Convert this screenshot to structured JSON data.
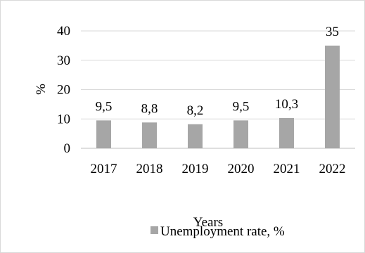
{
  "chart_data": {
    "type": "bar",
    "title": "",
    "categories": [
      "2017",
      "2018",
      "2019",
      "2020",
      "2021",
      "2022"
    ],
    "series": [
      {
        "name": "Unemployment rate, %",
        "values": [
          9.5,
          8.8,
          8.2,
          9.5,
          10.3,
          35
        ]
      }
    ],
    "data_labels": [
      "9,5",
      "8,8",
      "8,2",
      "9,5",
      "10,3",
      "35"
    ],
    "y_ticks": [
      "0",
      "10",
      "20",
      "30",
      "40"
    ],
    "xlabel": "Years",
    "ylabel": "%",
    "ylim": [
      0,
      40
    ],
    "grid": true,
    "legend_position": "bottom",
    "colors": {
      "bar": "#a6a6a6",
      "grid": "#d9d9d9",
      "text": "#000000"
    }
  }
}
